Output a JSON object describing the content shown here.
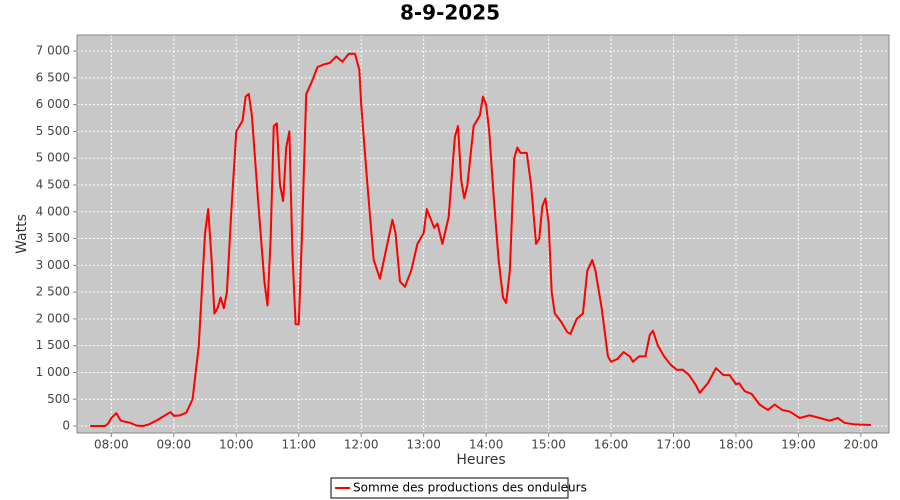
{
  "chart_data": {
    "type": "line",
    "title": "8-9-2025",
    "x_label": "Heures",
    "y_label": "Watts",
    "xlim": [
      7.45,
      20.45
    ],
    "xticks": [
      {
        "value": 8,
        "label": "08:00"
      },
      {
        "value": 9,
        "label": "09:00"
      },
      {
        "value": 10,
        "label": "10:00"
      },
      {
        "value": 11,
        "label": "11:00"
      },
      {
        "value": 12,
        "label": "12:00"
      },
      {
        "value": 13,
        "label": "13:00"
      },
      {
        "value": 14,
        "label": "14:00"
      },
      {
        "value": 15,
        "label": "15:00"
      },
      {
        "value": 16,
        "label": "16:00"
      },
      {
        "value": 17,
        "label": "17:00"
      },
      {
        "value": 18,
        "label": "18:00"
      },
      {
        "value": 19,
        "label": "19:00"
      },
      {
        "value": 20,
        "label": "20:00"
      }
    ],
    "ylim": [
      -130,
      7300
    ],
    "yticks": [
      0,
      500,
      {
        "value": 1000,
        "label": "1 000"
      },
      {
        "value": 1500,
        "label": "1 500"
      },
      {
        "value": 2000,
        "label": "2 000"
      },
      {
        "value": 2500,
        "label": "2 500"
      },
      {
        "value": 3000,
        "label": "3 000"
      },
      {
        "value": 3500,
        "label": "3 500"
      },
      {
        "value": 4000,
        "label": "4 000"
      },
      {
        "value": 4500,
        "label": "4 500"
      },
      {
        "value": 5000,
        "label": "5 000"
      },
      {
        "value": 5500,
        "label": "5 500"
      },
      {
        "value": 6000,
        "label": "6 000"
      },
      {
        "value": 6500,
        "label": "6 500"
      },
      {
        "value": 7000,
        "label": "7 000"
      }
    ],
    "grid": true,
    "x": [
      7.66,
      7.9,
      7.95,
      8.0,
      8.08,
      8.15,
      8.3,
      8.4,
      8.5,
      8.6,
      8.75,
      8.9,
      8.95,
      9.0,
      9.1,
      9.2,
      9.3,
      9.4,
      9.5,
      9.55,
      9.6,
      9.65,
      9.7,
      9.75,
      9.8,
      9.85,
      9.92,
      10.0,
      10.05,
      10.1,
      10.15,
      10.2,
      10.25,
      10.35,
      10.45,
      10.5,
      10.55,
      10.6,
      10.65,
      10.7,
      10.75,
      10.8,
      10.85,
      10.9,
      10.95,
      11.0,
      11.05,
      11.12,
      11.2,
      11.3,
      11.4,
      11.5,
      11.6,
      11.7,
      11.8,
      11.9,
      11.97,
      12.0,
      12.1,
      12.2,
      12.3,
      12.4,
      12.5,
      12.55,
      12.62,
      12.7,
      12.8,
      12.9,
      13.0,
      13.05,
      13.1,
      13.17,
      13.22,
      13.3,
      13.4,
      13.5,
      13.55,
      13.6,
      13.65,
      13.7,
      13.8,
      13.9,
      13.95,
      14.0,
      14.05,
      14.12,
      14.2,
      14.27,
      14.32,
      14.38,
      14.45,
      14.5,
      14.55,
      14.65,
      14.72,
      14.8,
      14.85,
      14.9,
      14.95,
      15.0,
      15.05,
      15.1,
      15.2,
      15.3,
      15.35,
      15.45,
      15.5,
      15.55,
      15.62,
      15.7,
      15.75,
      15.85,
      15.95,
      16.0,
      16.1,
      16.2,
      16.3,
      16.35,
      16.45,
      16.55,
      16.62,
      16.67,
      16.75,
      16.85,
      16.95,
      17.05,
      17.15,
      17.25,
      17.35,
      17.42,
      17.55,
      17.68,
      17.8,
      17.9,
      18.0,
      18.05,
      18.14,
      18.25,
      18.38,
      18.51,
      18.62,
      18.74,
      18.86,
      19.02,
      19.18,
      19.34,
      19.5,
      19.63,
      19.74,
      19.9,
      20.16
    ],
    "series": [
      {
        "name": "Somme des productions des onduleurs",
        "color": "#ff0000",
        "values": [
          0,
          0,
          50,
          150,
          240,
          100,
          60,
          10,
          0,
          30,
          120,
          230,
          260,
          190,
          200,
          250,
          500,
          1500,
          3600,
          4050,
          3200,
          2100,
          2200,
          2400,
          2200,
          2500,
          4000,
          5500,
          5600,
          5700,
          6150,
          6200,
          5800,
          4200,
          2700,
          2250,
          3500,
          5600,
          5650,
          4500,
          4200,
          5200,
          5500,
          3200,
          1900,
          1900,
          3500,
          6200,
          6400,
          6700,
          6750,
          6780,
          6900,
          6800,
          6950,
          6950,
          6650,
          6000,
          4500,
          3100,
          2750,
          3300,
          3850,
          3600,
          2700,
          2600,
          2900,
          3400,
          3600,
          4050,
          3900,
          3700,
          3780,
          3400,
          3900,
          5400,
          5600,
          4600,
          4250,
          4500,
          5600,
          5800,
          6150,
          6000,
          5500,
          4300,
          3100,
          2400,
          2300,
          2900,
          5000,
          5200,
          5100,
          5100,
          4500,
          3400,
          3500,
          4100,
          4250,
          3800,
          2500,
          2100,
          1950,
          1750,
          1720,
          2000,
          2050,
          2100,
          2900,
          3100,
          2900,
          2200,
          1300,
          1200,
          1250,
          1380,
          1300,
          1200,
          1300,
          1300,
          1700,
          1780,
          1500,
          1300,
          1150,
          1050,
          1050,
          950,
          780,
          620,
          800,
          1080,
          950,
          950,
          780,
          800,
          650,
          600,
          400,
          300,
          400,
          300,
          270,
          150,
          200,
          150,
          100,
          150,
          60,
          30,
          20
        ]
      }
    ]
  }
}
